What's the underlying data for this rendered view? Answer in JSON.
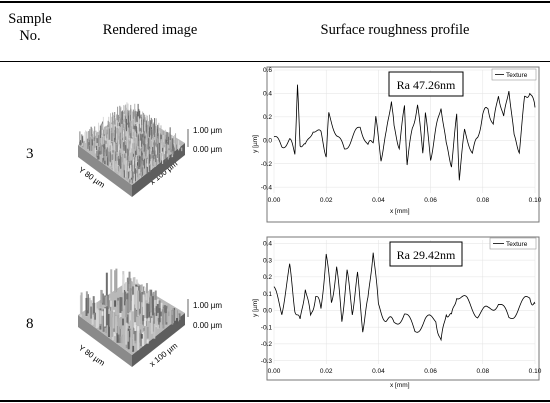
{
  "table": {
    "headers": {
      "sample": [
        "Sample",
        "No."
      ],
      "image": "Rendered image",
      "profile": "Surface roughness profile"
    },
    "rows": [
      {
        "sample": "3",
        "render": {
          "z_max": "1.00 µm",
          "z_min": "0.00 µm",
          "x_dim": "x 100 µm",
          "y_dim": "Y 80 µm"
        },
        "profile": {
          "ra": "Ra 47.26nm",
          "legend": "Texture",
          "xlabel": "x [mm]",
          "ylabel": "y [µm]",
          "xticks": [
            "0.00",
            "0.02",
            "0.04",
            "0.06",
            "0.08",
            "0.10"
          ],
          "yticks": [
            "0.6",
            "0.4",
            "0.2",
            "0.0",
            "-0.2",
            "-0.4"
          ]
        }
      },
      {
        "sample": "8",
        "render": {
          "z_max": "1.00 µm",
          "z_min": "0.00 µm",
          "x_dim": "x 100 µm",
          "y_dim": "Y 80 µm"
        },
        "profile": {
          "ra": "Ra 29.42nm",
          "legend": "Texture",
          "xlabel": "x [mm]",
          "ylabel": "y [µm]",
          "xticks": [
            "0.00",
            "0.02",
            "0.04",
            "0.06",
            "0.08",
            "0.10"
          ],
          "yticks": [
            "0.4",
            "0.3",
            "0.2",
            "0.1",
            "0.0",
            "-0.1",
            "-0.2",
            "-0.3"
          ]
        }
      }
    ]
  },
  "chart_data": [
    {
      "type": "line",
      "xlabel": "x [mm]",
      "ylabel": "y [µm]",
      "xlim": [
        0,
        0.1
      ],
      "ylim": [
        -0.45,
        0.6
      ],
      "series": [
        {
          "name": "Texture",
          "x": [
            0.0,
            0.003,
            0.006,
            0.008,
            0.009,
            0.01,
            0.012,
            0.015,
            0.018,
            0.02,
            0.021,
            0.024,
            0.027,
            0.03,
            0.033,
            0.036,
            0.038,
            0.039,
            0.041,
            0.043,
            0.045,
            0.046,
            0.048,
            0.05,
            0.051,
            0.053,
            0.055,
            0.057,
            0.058,
            0.06,
            0.062,
            0.064,
            0.066,
            0.068,
            0.07,
            0.071,
            0.073,
            0.076,
            0.078,
            0.08,
            0.082,
            0.084,
            0.086,
            0.088,
            0.09,
            0.092,
            0.094,
            0.096,
            0.098,
            0.1
          ],
          "y": [
            0.03,
            -0.05,
            0.0,
            -0.1,
            0.45,
            -0.02,
            -0.06,
            0.1,
            0.05,
            -0.12,
            0.22,
            0.05,
            -0.08,
            0.02,
            0.12,
            -0.05,
            0.0,
            0.18,
            -0.15,
            0.05,
            0.36,
            0.1,
            -0.05,
            0.28,
            -0.2,
            0.1,
            0.3,
            -0.1,
            0.22,
            -0.15,
            0.08,
            0.3,
            -0.05,
            -0.2,
            0.2,
            -0.32,
            0.08,
            -0.1,
            0.02,
            0.22,
            0.28,
            0.12,
            0.4,
            0.18,
            0.45,
            0.02,
            -0.08,
            0.35,
            0.42,
            0.28
          ]
        }
      ]
    },
    {
      "type": "line",
      "xlabel": "x [mm]",
      "ylabel": "y [µm]",
      "xlim": [
        0,
        0.1
      ],
      "ylim": [
        -0.32,
        0.42
      ],
      "series": [
        {
          "name": "Texture",
          "x": [
            0.0,
            0.003,
            0.006,
            0.008,
            0.01,
            0.012,
            0.014,
            0.016,
            0.018,
            0.02,
            0.022,
            0.024,
            0.026,
            0.028,
            0.03,
            0.032,
            0.034,
            0.036,
            0.038,
            0.04,
            0.043,
            0.046,
            0.05,
            0.054,
            0.058,
            0.062,
            0.064,
            0.066,
            0.068,
            0.07,
            0.074,
            0.078,
            0.082,
            0.086,
            0.09,
            0.094,
            0.098,
            0.1
          ],
          "y": [
            0.12,
            0.0,
            0.25,
            0.02,
            -0.08,
            0.15,
            -0.05,
            0.1,
            0.0,
            0.34,
            0.05,
            0.25,
            -0.05,
            0.22,
            0.0,
            0.2,
            -0.1,
            0.05,
            0.37,
            0.02,
            -0.05,
            -0.08,
            -0.02,
            -0.12,
            -0.06,
            -0.05,
            -0.2,
            0.0,
            -0.05,
            0.1,
            0.05,
            -0.02,
            0.0,
            0.05,
            -0.05,
            0.02,
            0.08,
            0.04
          ]
        }
      ]
    }
  ]
}
